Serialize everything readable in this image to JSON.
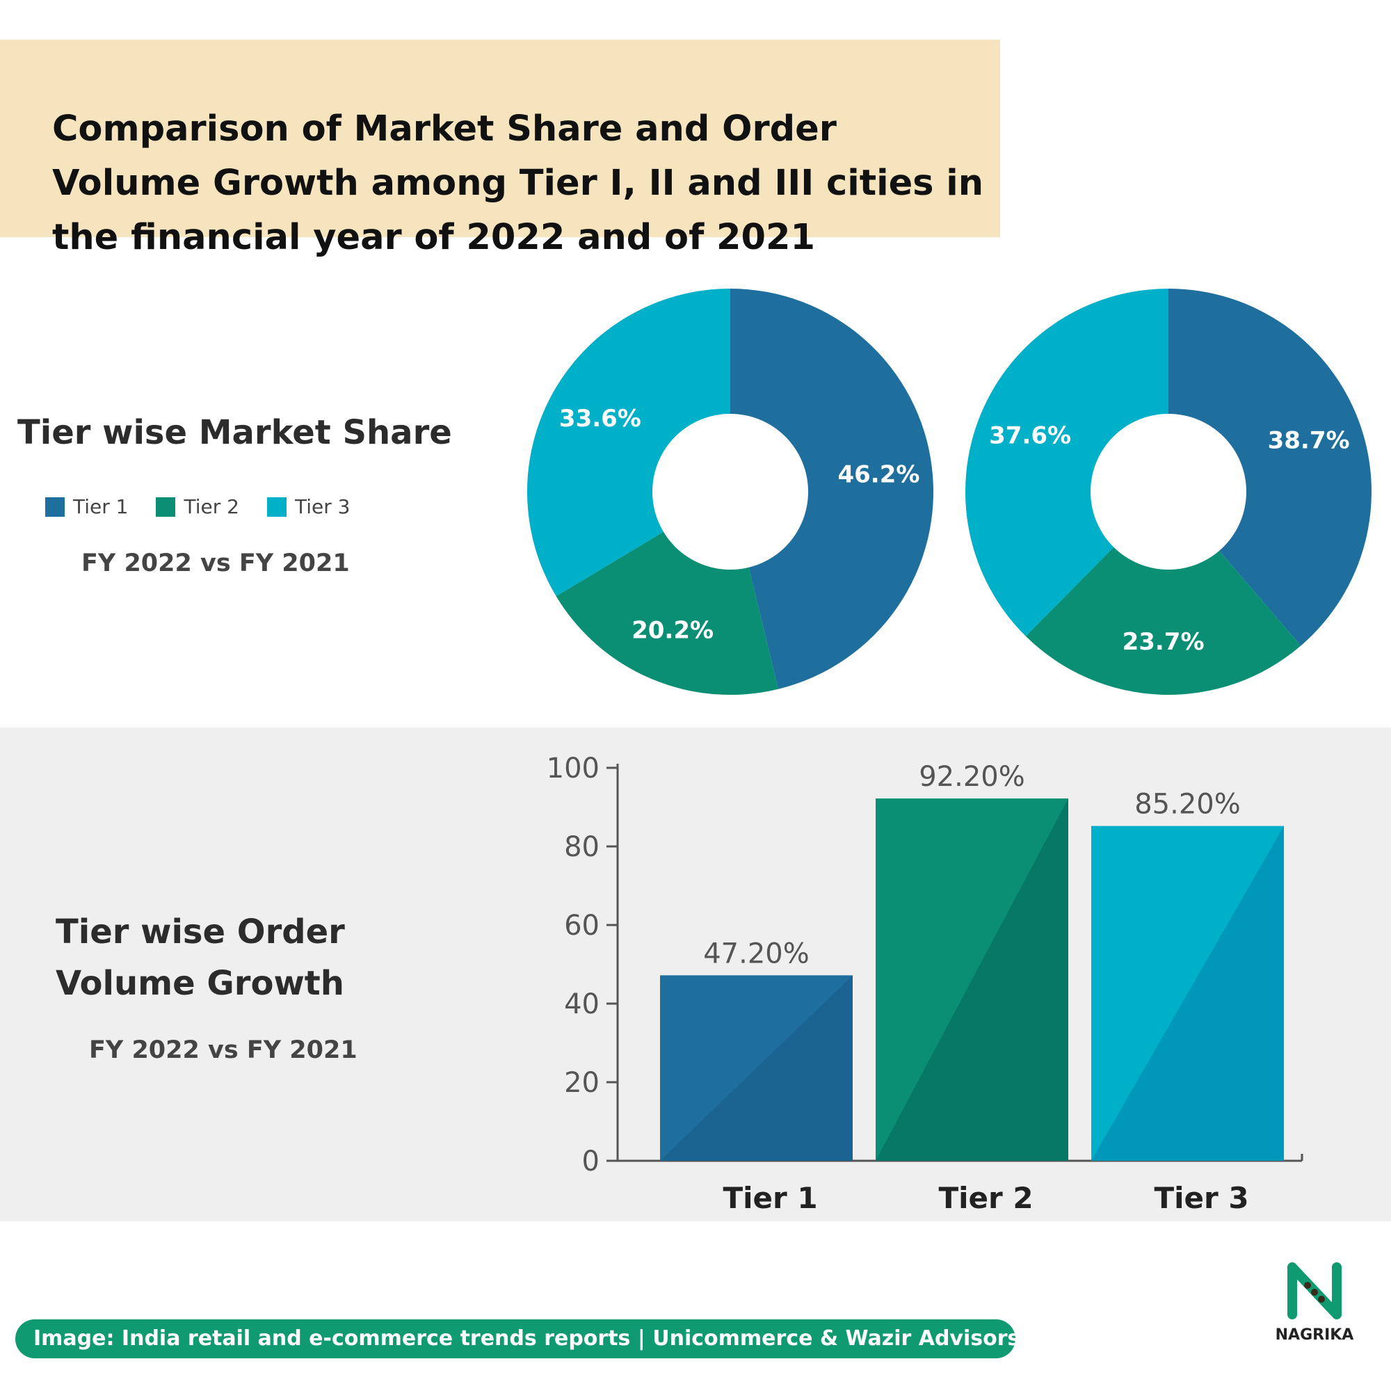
{
  "header": {
    "title": "Comparison of Market Share and Order Volume Growth among Tier I, II and III cities in the financial year of 2022  and of 2021"
  },
  "market_share": {
    "heading": "Tier wise Market Share",
    "subtitle": "FY 2022 vs FY 2021",
    "legend": [
      {
        "label": "Tier 1",
        "color": "#1f6f9e"
      },
      {
        "label": "Tier 2",
        "color": "#0a8f74"
      },
      {
        "label": "Tier 3",
        "color": "#00afc8"
      }
    ]
  },
  "order_volume": {
    "heading_line1": "Tier wise Order",
    "heading_line2": "Volume Growth",
    "subtitle": "FY 2022 vs FY 2021"
  },
  "footer": {
    "source": "Image: India retail and e-commerce trends reports | Unicommerce & Wazir Advisors",
    "logo_text": "NAGRIKA"
  },
  "colors": {
    "tier1": "#1f6f9e",
    "tier2": "#0a8f74",
    "tier3": "#00afc8",
    "tier1_dark": "#1b6390",
    "tier2_dark": "#077766",
    "tier3_dark": "#0097bb",
    "accent_green": "#0f9a72"
  },
  "chart_data": [
    {
      "type": "pie",
      "title": "",
      "categories": [
        "Tier 1",
        "Tier 2",
        "Tier 3"
      ],
      "values": [
        46.2,
        20.2,
        33.6
      ],
      "labels": [
        "46.2%",
        "20.2%",
        "33.6%"
      ],
      "donut": true
    },
    {
      "type": "pie",
      "title": "",
      "categories": [
        "Tier 1",
        "Tier 2",
        "Tier 3"
      ],
      "values": [
        38.7,
        23.7,
        37.6
      ],
      "labels": [
        "38.7%",
        "23.7%",
        "37.6%"
      ],
      "donut": true
    },
    {
      "type": "bar",
      "title": "",
      "categories": [
        "Tier 1",
        "Tier 2",
        "Tier 3"
      ],
      "values": [
        47.2,
        92.2,
        85.2
      ],
      "labels": [
        "47.20%",
        "92.20%",
        "85.20%"
      ],
      "ylim": [
        0,
        100
      ],
      "yticks": [
        0,
        20,
        40,
        60,
        80,
        100
      ],
      "xlabel": "",
      "ylabel": "",
      "grid": false
    }
  ]
}
